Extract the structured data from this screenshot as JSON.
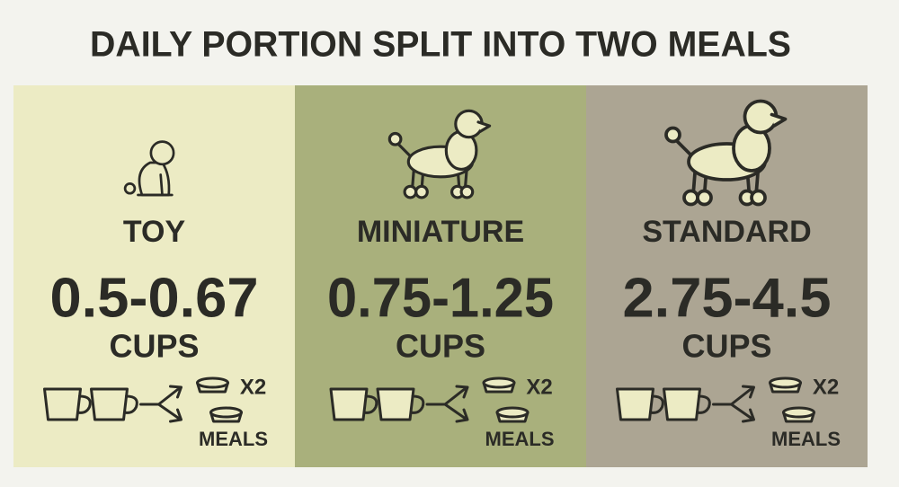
{
  "title": "DAILY PORTION SPLIT INTO TWO MEALS",
  "panels": [
    {
      "size": "TOY",
      "amount": "0.5-0.67",
      "unit": "CUPS",
      "multiplier": "X2",
      "meals": "MEALS"
    },
    {
      "size": "MINIATURE",
      "amount": "0.75-1.25",
      "unit": "CUPS",
      "multiplier": "X2",
      "meals": "MEALS"
    },
    {
      "size": "STANDARD",
      "amount": "2.75-4.5",
      "unit": "CUPS",
      "multiplier": "X2",
      "meals": "MEALS"
    }
  ]
}
